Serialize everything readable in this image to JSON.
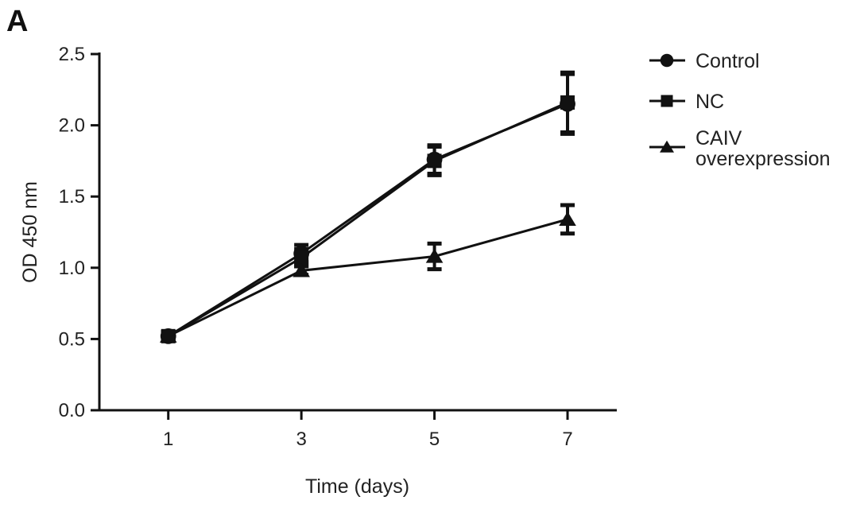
{
  "panel_label": "A",
  "chart_data": {
    "type": "line",
    "title": "",
    "xlabel": "Time (days)",
    "ylabel": "OD 450 nm",
    "x": [
      1,
      3,
      5,
      7
    ],
    "xticks": [
      "1",
      "3",
      "5",
      "7"
    ],
    "yticks": [
      "0.0",
      "0.5",
      "1.0",
      "1.5",
      "2.0",
      "2.5"
    ],
    "xlim": [
      0,
      7.8
    ],
    "ylim": [
      0,
      2.5
    ],
    "grid": false,
    "legend_position": "right",
    "color": "#111111",
    "series": [
      {
        "name": "Control",
        "marker": "circle",
        "values": [
          0.52,
          1.1,
          1.76,
          2.15
        ],
        "errors": [
          0.03,
          0.06,
          0.1,
          0.21
        ]
      },
      {
        "name": "NC",
        "marker": "square",
        "values": [
          0.52,
          1.07,
          1.75,
          2.16
        ],
        "errors": [
          0.03,
          0.06,
          0.1,
          0.21
        ]
      },
      {
        "name": "CAIV overexpression",
        "legend_lines": [
          "CAIV",
          "overexpression"
        ],
        "marker": "triangle",
        "values": [
          0.52,
          0.98,
          1.08,
          1.34
        ],
        "errors": [
          0.03,
          0.03,
          0.09,
          0.1
        ]
      }
    ]
  }
}
